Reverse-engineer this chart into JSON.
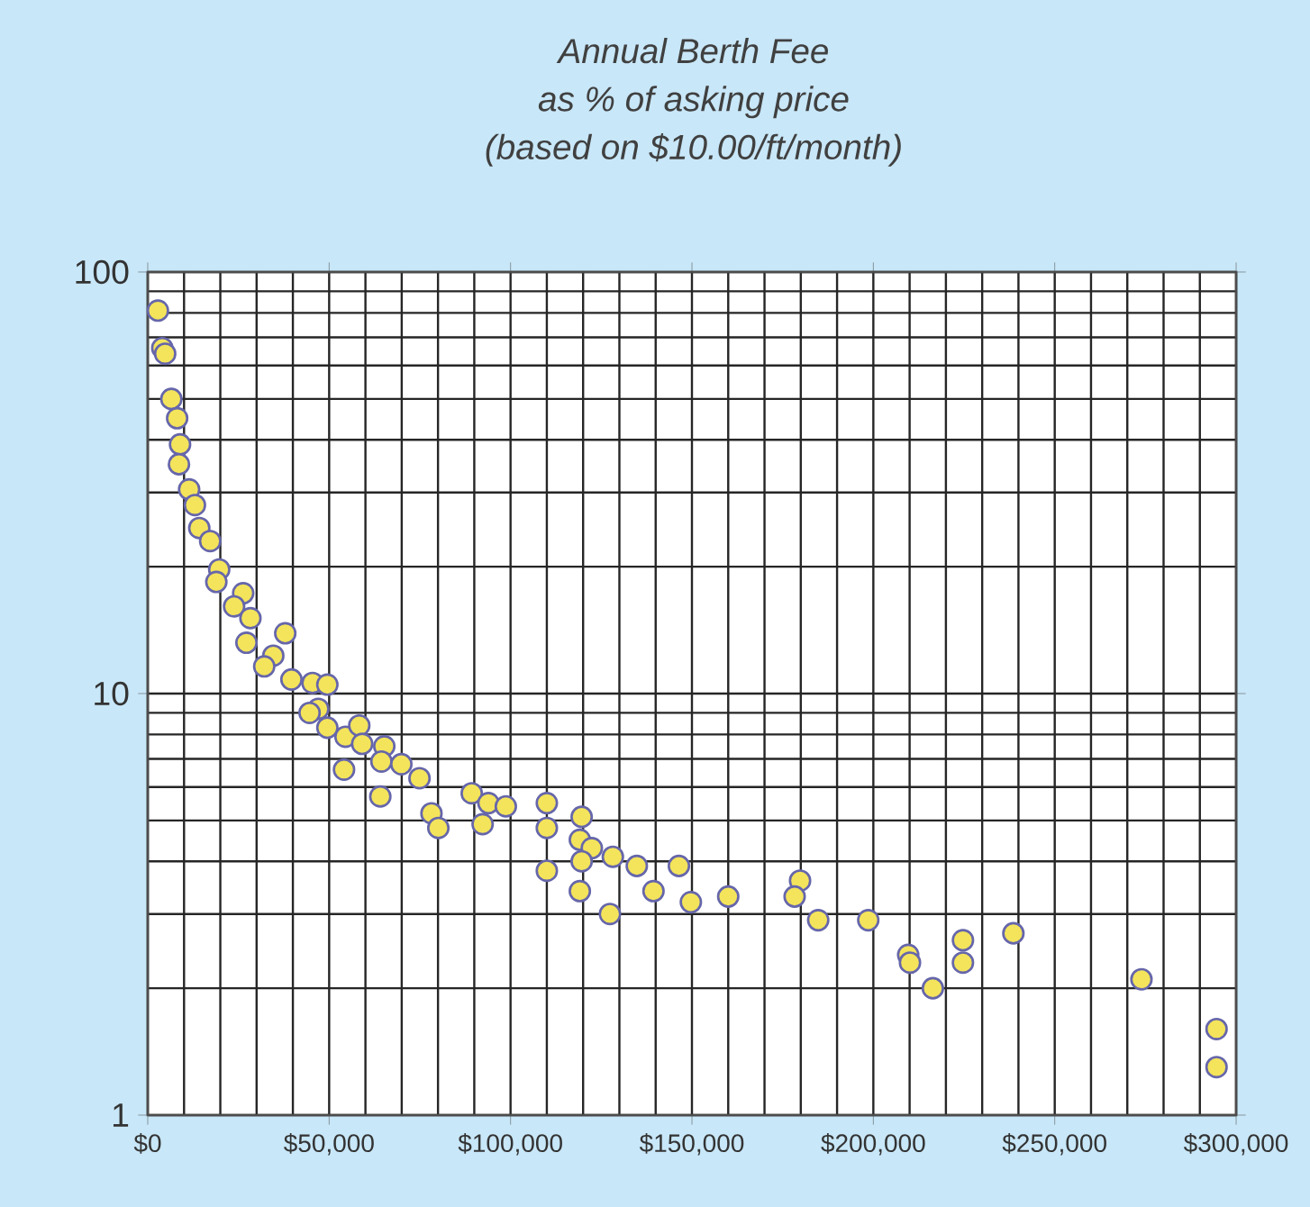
{
  "chart_data": {
    "type": "scatter",
    "title": "Annual Berth Fee\nas % of asking price\n(based on $10.00/ft/month)",
    "x": [
      2800,
      4000,
      4800,
      6500,
      8100,
      8900,
      8600,
      11400,
      13000,
      14200,
      17200,
      19700,
      18900,
      26300,
      23800,
      28300,
      27200,
      34600,
      37900,
      32100,
      39600,
      45400,
      49500,
      47000,
      44600,
      49500,
      54500,
      58300,
      59100,
      54100,
      65200,
      64400,
      69900,
      64100,
      74900,
      78200,
      80100,
      89300,
      93900,
      92300,
      98700,
      110000,
      110000,
      110000,
      119600,
      119100,
      122400,
      119600,
      119100,
      127400,
      128200,
      134800,
      146400,
      139400,
      149700,
      160000,
      179800,
      178300,
      184800,
      198600,
      209600,
      210100,
      216400,
      224700,
      224700,
      238600,
      273900,
      294600,
      294600
    ],
    "values": [
      81,
      66,
      64,
      50,
      45,
      39,
      35,
      30.5,
      28,
      24.7,
      23,
      19.7,
      18.4,
      17.3,
      16.1,
      15.1,
      13.2,
      12.3,
      13.9,
      11.6,
      10.8,
      10.6,
      10.5,
      9.2,
      9.0,
      8.3,
      7.9,
      8.4,
      7.6,
      6.6,
      7.5,
      6.9,
      6.8,
      5.7,
      6.3,
      5.2,
      4.8,
      5.8,
      5.5,
      4.9,
      5.4,
      5.5,
      4.8,
      3.8,
      5.1,
      4.5,
      4.3,
      4.0,
      3.4,
      3.0,
      4.1,
      3.9,
      3.9,
      3.4,
      3.2,
      3.3,
      3.6,
      3.3,
      2.9,
      2.9,
      2.4,
      2.3,
      2.0,
      2.6,
      2.3,
      2.7,
      2.1,
      1.6,
      1.3
    ],
    "color": "#f3e45c",
    "marker": "circle",
    "log": "y",
    "grid": true,
    "xlim": [
      0,
      300000
    ],
    "ylim": [
      1,
      100
    ],
    "xticks": [
      {
        "value": 0,
        "label": "$0"
      },
      {
        "value": 50000,
        "label": "$50,000"
      },
      {
        "value": 100000,
        "label": "$100,000"
      },
      {
        "value": 150000,
        "label": "$150,000"
      },
      {
        "value": 200000,
        "label": "$200,000"
      },
      {
        "value": 250000,
        "label": "$250,000"
      },
      {
        "value": 300000,
        "label": "$300,000"
      }
    ],
    "yticks": [
      1,
      10,
      100
    ]
  }
}
